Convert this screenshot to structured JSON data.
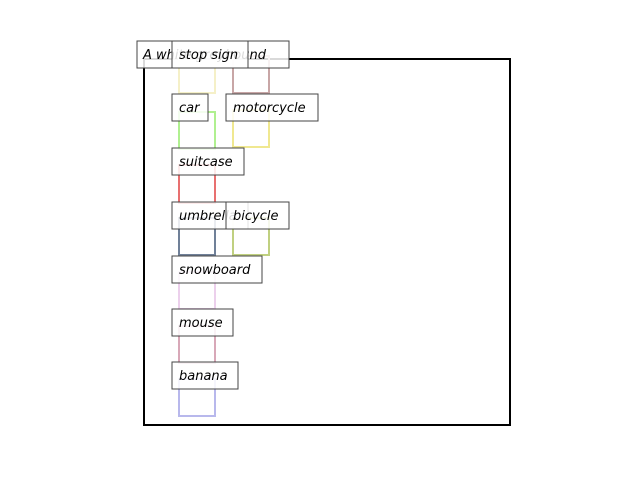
{
  "figure": {
    "labels": [
      {
        "id": "a-white-greyhound",
        "text": "A white greyhound"
      },
      {
        "id": "stop-sign",
        "text": "stop sign"
      },
      {
        "id": "car",
        "text": "car"
      },
      {
        "id": "motorcycle",
        "text": "motorcycle"
      },
      {
        "id": "suitcase",
        "text": "suitcase"
      },
      {
        "id": "umbrella",
        "text": "umbrella"
      },
      {
        "id": "bicycle",
        "text": "bicycle"
      },
      {
        "id": "snowboard",
        "text": "snowboard"
      },
      {
        "id": "mouse",
        "text": "mouse"
      },
      {
        "id": "banana",
        "text": "banana"
      }
    ],
    "colors": {
      "frame": "#000000",
      "label_border": "#444444",
      "label_fill": "#ffffff",
      "stop-sign": "#f5f0c8",
      "a-white-greyhound": "#c8a6a6",
      "car": "#b0f090",
      "motorcycle": "#f0e890",
      "suitcase": "#e87070",
      "umbrella": "#708098",
      "bicycle": "#c0d080",
      "snowboard": "#ecd0ec",
      "mouse": "#d8a8b8",
      "banana": "#b8b8ec"
    }
  }
}
